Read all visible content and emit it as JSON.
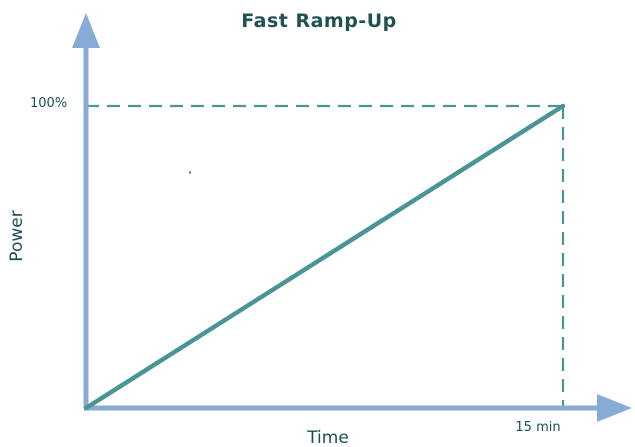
{
  "chart_data": {
    "type": "line",
    "title": "Fast Ramp-Up",
    "xlabel": "Time",
    "ylabel": "Power",
    "x": [
      0,
      15
    ],
    "y": [
      0,
      100
    ],
    "xlim": [
      0,
      15
    ],
    "ylim": [
      0,
      100
    ],
    "x_tick_labels": [
      "15 min"
    ],
    "y_tick_labels": [
      "100%"
    ],
    "grid": false,
    "guide_lines": "dashed at 100% power and 15 min",
    "colors": {
      "line": "#4a9496",
      "guides": "#4a9496",
      "axes": "#88aad6",
      "title": "#1f5152",
      "labels": "#1a4f51"
    }
  }
}
